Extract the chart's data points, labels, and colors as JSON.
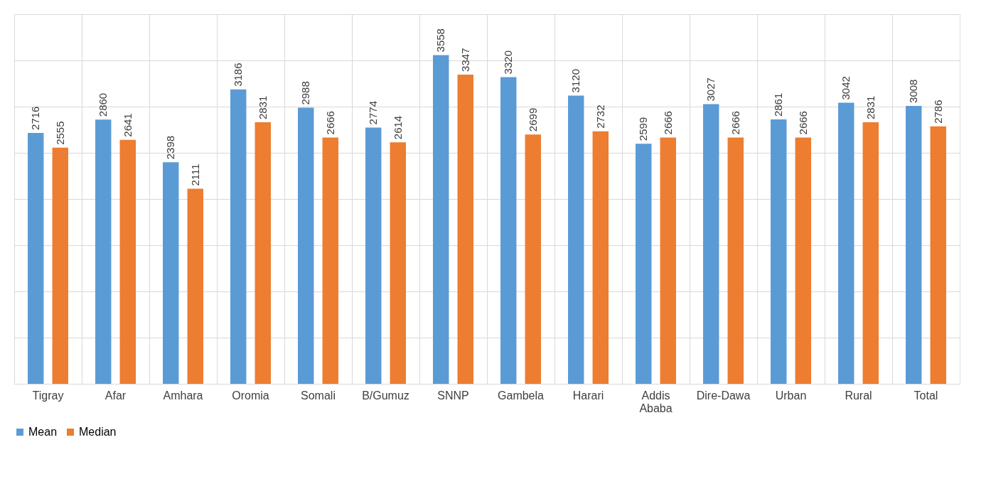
{
  "chart_data": {
    "type": "bar",
    "categories": [
      "Tigray",
      "Afar",
      "Amhara",
      "Oromia",
      "Somali",
      "B/Gumuz",
      "SNNP",
      "Gambela",
      "Harari",
      "Addis Ababa",
      "Dire-Dawa",
      "Urban",
      "Rural",
      "Total"
    ],
    "series": [
      {
        "name": "Mean",
        "color": "#5b9bd5",
        "values": [
          2716,
          2860,
          2398,
          3186,
          2988,
          2774,
          3558,
          3320,
          3120,
          2599,
          3027,
          2861,
          3042,
          3008
        ]
      },
      {
        "name": "Median",
        "color": "#ed7d31",
        "values": [
          2555,
          2641,
          2111,
          2831,
          2666,
          2614,
          3347,
          2699,
          2732,
          2666,
          2666,
          2666,
          2831,
          2786
        ]
      }
    ],
    "ylim": [
      0,
      4000
    ],
    "yticks": [
      {
        "value": 0,
        "label": null
      },
      {
        "value": 500,
        "label": null
      },
      {
        "value": 1000,
        "label": null
      },
      {
        "value": 1500,
        "label": null
      },
      {
        "value": 2000,
        "label": null
      },
      {
        "value": 2500,
        "label": null
      },
      {
        "value": 3000,
        "label": null
      },
      {
        "value": 3500,
        "label": null
      },
      {
        "value": 4000,
        "label": null
      }
    ],
    "tick_labels": "x",
    "grid": true,
    "legend": "bottom",
    "data_labels": true
  }
}
